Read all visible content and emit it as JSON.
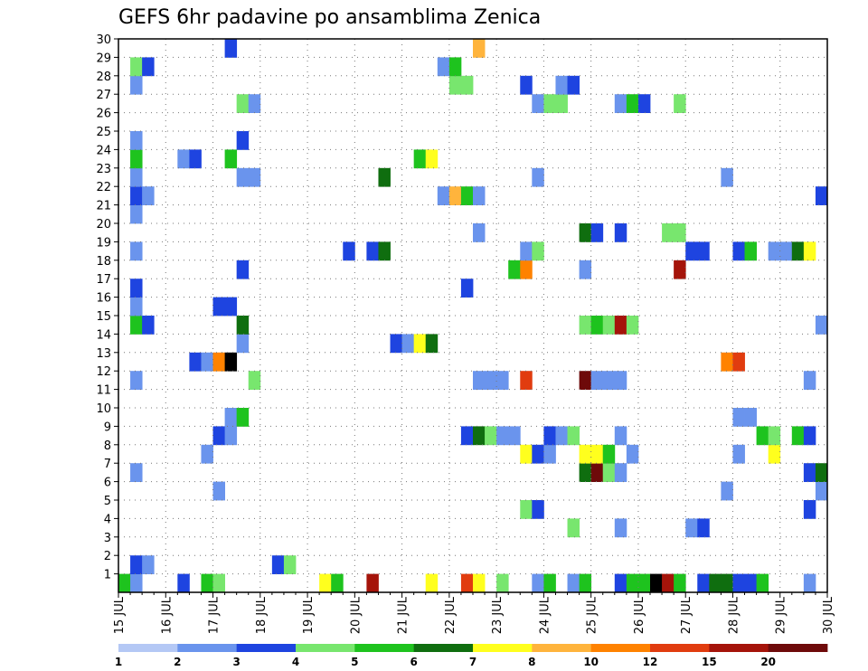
{
  "chart_data": {
    "type": "heatmap",
    "title": "GEFS 6hr padavine po ansamblima Zenica",
    "x_ticks": [
      "15 JUL",
      "16 JUL",
      "17 JUL",
      "18 JUL",
      "19 JUL",
      "20 JUL",
      "21 JUL",
      "22 JUL",
      "23 JUL",
      "24 JUL",
      "25 JUL",
      "26 JUL",
      "27 JUL",
      "28 JUL",
      "29 JUL",
      "30 JUL"
    ],
    "y_ticks": [
      "1",
      "2",
      "3",
      "4",
      "5",
      "6",
      "7",
      "8",
      "9",
      "10",
      "11",
      "12",
      "13",
      "14",
      "15",
      "16",
      "17",
      "18",
      "19",
      "20",
      "21",
      "22",
      "23",
      "24",
      "25",
      "26",
      "27",
      "28",
      "29",
      "30"
    ],
    "xlim": [
      0,
      60
    ],
    "ylim": [
      0,
      30
    ],
    "grid": true,
    "colorbar": {
      "bounds": [
        "1",
        "2",
        "3",
        "4",
        "5",
        "6",
        "7",
        "8",
        "10",
        "12",
        "15",
        "20"
      ],
      "colors": [
        "#b4c8f5",
        "#6a94ed",
        "#1e44e0",
        "#78e66e",
        "#1ec31e",
        "#0f6e0f",
        "#ffff1e",
        "#ffb43c",
        "#ff8200",
        "#e13c0f",
        "#a5140a",
        "#6e0a0a"
      ]
    },
    "cells": [
      [
        0,
        0,
        4
      ],
      [
        1,
        0,
        1
      ],
      [
        5,
        0,
        2
      ],
      [
        7,
        0,
        4
      ],
      [
        8,
        0,
        3
      ],
      [
        17,
        0,
        6
      ],
      [
        18,
        0,
        4
      ],
      [
        21,
        0,
        10
      ],
      [
        26,
        0,
        6
      ],
      [
        29,
        0,
        9
      ],
      [
        30,
        0,
        6
      ],
      [
        32,
        0,
        3
      ],
      [
        35,
        0,
        1
      ],
      [
        36,
        0,
        4
      ],
      [
        38,
        0,
        1
      ],
      [
        39,
        0,
        4
      ],
      [
        42,
        0,
        2
      ],
      [
        43,
        0,
        4
      ],
      [
        44,
        0,
        4
      ],
      [
        45,
        0,
        12
      ],
      [
        46,
        0,
        10
      ],
      [
        47,
        0,
        4
      ],
      [
        49,
        0,
        2
      ],
      [
        50,
        0,
        5
      ],
      [
        51,
        0,
        5
      ],
      [
        52,
        0,
        2
      ],
      [
        53,
        0,
        2
      ],
      [
        54,
        0,
        4
      ],
      [
        58,
        0,
        1
      ],
      [
        1,
        1,
        2
      ],
      [
        2,
        1,
        1
      ],
      [
        13,
        1,
        2
      ],
      [
        14,
        1,
        3
      ],
      [
        48,
        3,
        1
      ],
      [
        49,
        3,
        2
      ],
      [
        38,
        3,
        3
      ],
      [
        42,
        3,
        1
      ],
      [
        34,
        4,
        3
      ],
      [
        35,
        4,
        2
      ],
      [
        58,
        4,
        2
      ],
      [
        8,
        5,
        1
      ],
      [
        51,
        5,
        1
      ],
      [
        59,
        5,
        1
      ],
      [
        1,
        6,
        1
      ],
      [
        39,
        6,
        5
      ],
      [
        40,
        6,
        11
      ],
      [
        41,
        6,
        3
      ],
      [
        42,
        6,
        1
      ],
      [
        58,
        6,
        2
      ],
      [
        59,
        6,
        5
      ],
      [
        7,
        7,
        1
      ],
      [
        34,
        7,
        6
      ],
      [
        35,
        7,
        2
      ],
      [
        36,
        7,
        1
      ],
      [
        39,
        7,
        6
      ],
      [
        40,
        7,
        6
      ],
      [
        41,
        7,
        4
      ],
      [
        43,
        7,
        1
      ],
      [
        52,
        7,
        1
      ],
      [
        55,
        7,
        6
      ],
      [
        8,
        8,
        2
      ],
      [
        9,
        8,
        1
      ],
      [
        29,
        8,
        2
      ],
      [
        30,
        8,
        5
      ],
      [
        31,
        8,
        3
      ],
      [
        32,
        8,
        1
      ],
      [
        33,
        8,
        1
      ],
      [
        36,
        8,
        2
      ],
      [
        37,
        8,
        1
      ],
      [
        38,
        8,
        3
      ],
      [
        42,
        8,
        1
      ],
      [
        54,
        8,
        4
      ],
      [
        55,
        8,
        3
      ],
      [
        57,
        8,
        4
      ],
      [
        58,
        8,
        2
      ],
      [
        9,
        9,
        1
      ],
      [
        10,
        9,
        4
      ],
      [
        52,
        9,
        1
      ],
      [
        53,
        9,
        1
      ],
      [
        1,
        11,
        1
      ],
      [
        11,
        11,
        3
      ],
      [
        30,
        11,
        1
      ],
      [
        31,
        11,
        1
      ],
      [
        32,
        11,
        1
      ],
      [
        34,
        11,
        9
      ],
      [
        39,
        11,
        11
      ],
      [
        40,
        11,
        1
      ],
      [
        41,
        11,
        1
      ],
      [
        42,
        11,
        1
      ],
      [
        58,
        11,
        1
      ],
      [
        6,
        12,
        2
      ],
      [
        7,
        12,
        1
      ],
      [
        8,
        12,
        8
      ],
      [
        9,
        12,
        12
      ],
      [
        51,
        12,
        8
      ],
      [
        52,
        12,
        9
      ],
      [
        10,
        13,
        1
      ],
      [
        23,
        13,
        2
      ],
      [
        24,
        13,
        1
      ],
      [
        25,
        13,
        6
      ],
      [
        26,
        13,
        5
      ],
      [
        1,
        14,
        4
      ],
      [
        2,
        14,
        2
      ],
      [
        10,
        14,
        5
      ],
      [
        39,
        14,
        3
      ],
      [
        40,
        14,
        4
      ],
      [
        41,
        14,
        3
      ],
      [
        42,
        14,
        10
      ],
      [
        43,
        14,
        3
      ],
      [
        59,
        14,
        1
      ],
      [
        1,
        15,
        1
      ],
      [
        8,
        15,
        2
      ],
      [
        9,
        15,
        2
      ],
      [
        1,
        16,
        2
      ],
      [
        29,
        16,
        2
      ],
      [
        10,
        17,
        2
      ],
      [
        33,
        17,
        4
      ],
      [
        34,
        17,
        8
      ],
      [
        39,
        17,
        1
      ],
      [
        47,
        17,
        10
      ],
      [
        1,
        18,
        1
      ],
      [
        19,
        18,
        2
      ],
      [
        21,
        18,
        2
      ],
      [
        22,
        18,
        5
      ],
      [
        34,
        18,
        1
      ],
      [
        35,
        18,
        3
      ],
      [
        48,
        18,
        2
      ],
      [
        49,
        18,
        2
      ],
      [
        52,
        18,
        2
      ],
      [
        53,
        18,
        4
      ],
      [
        55,
        18,
        1
      ],
      [
        56,
        18,
        1
      ],
      [
        57,
        18,
        5
      ],
      [
        58,
        18,
        6
      ],
      [
        30,
        19,
        1
      ],
      [
        39,
        19,
        5
      ],
      [
        40,
        19,
        2
      ],
      [
        42,
        19,
        2
      ],
      [
        46,
        19,
        3
      ],
      [
        47,
        19,
        3
      ],
      [
        1,
        20,
        1
      ],
      [
        1,
        21,
        2
      ],
      [
        2,
        21,
        1
      ],
      [
        27,
        21,
        1
      ],
      [
        28,
        21,
        7
      ],
      [
        29,
        21,
        4
      ],
      [
        30,
        21,
        1
      ],
      [
        59,
        21,
        2
      ],
      [
        1,
        22,
        1
      ],
      [
        10,
        22,
        1
      ],
      [
        11,
        22,
        1
      ],
      [
        22,
        22,
        5
      ],
      [
        35,
        22,
        1
      ],
      [
        51,
        22,
        1
      ],
      [
        1,
        23,
        4
      ],
      [
        5,
        23,
        1
      ],
      [
        6,
        23,
        2
      ],
      [
        9,
        23,
        4
      ],
      [
        25,
        23,
        4
      ],
      [
        26,
        23,
        6
      ],
      [
        10,
        24,
        2
      ],
      [
        1,
        24,
        1
      ],
      [
        10,
        26,
        3
      ],
      [
        11,
        26,
        1
      ],
      [
        35,
        26,
        1
      ],
      [
        36,
        26,
        3
      ],
      [
        37,
        26,
        3
      ],
      [
        42,
        26,
        1
      ],
      [
        43,
        26,
        4
      ],
      [
        44,
        26,
        2
      ],
      [
        47,
        26,
        3
      ],
      [
        1,
        27,
        1
      ],
      [
        28,
        27,
        3
      ],
      [
        29,
        27,
        3
      ],
      [
        34,
        27,
        2
      ],
      [
        37,
        27,
        1
      ],
      [
        38,
        27,
        2
      ],
      [
        1,
        28,
        3
      ],
      [
        2,
        28,
        2
      ],
      [
        27,
        28,
        1
      ],
      [
        28,
        28,
        4
      ],
      [
        9,
        29,
        2
      ],
      [
        30,
        29,
        7
      ]
    ]
  }
}
